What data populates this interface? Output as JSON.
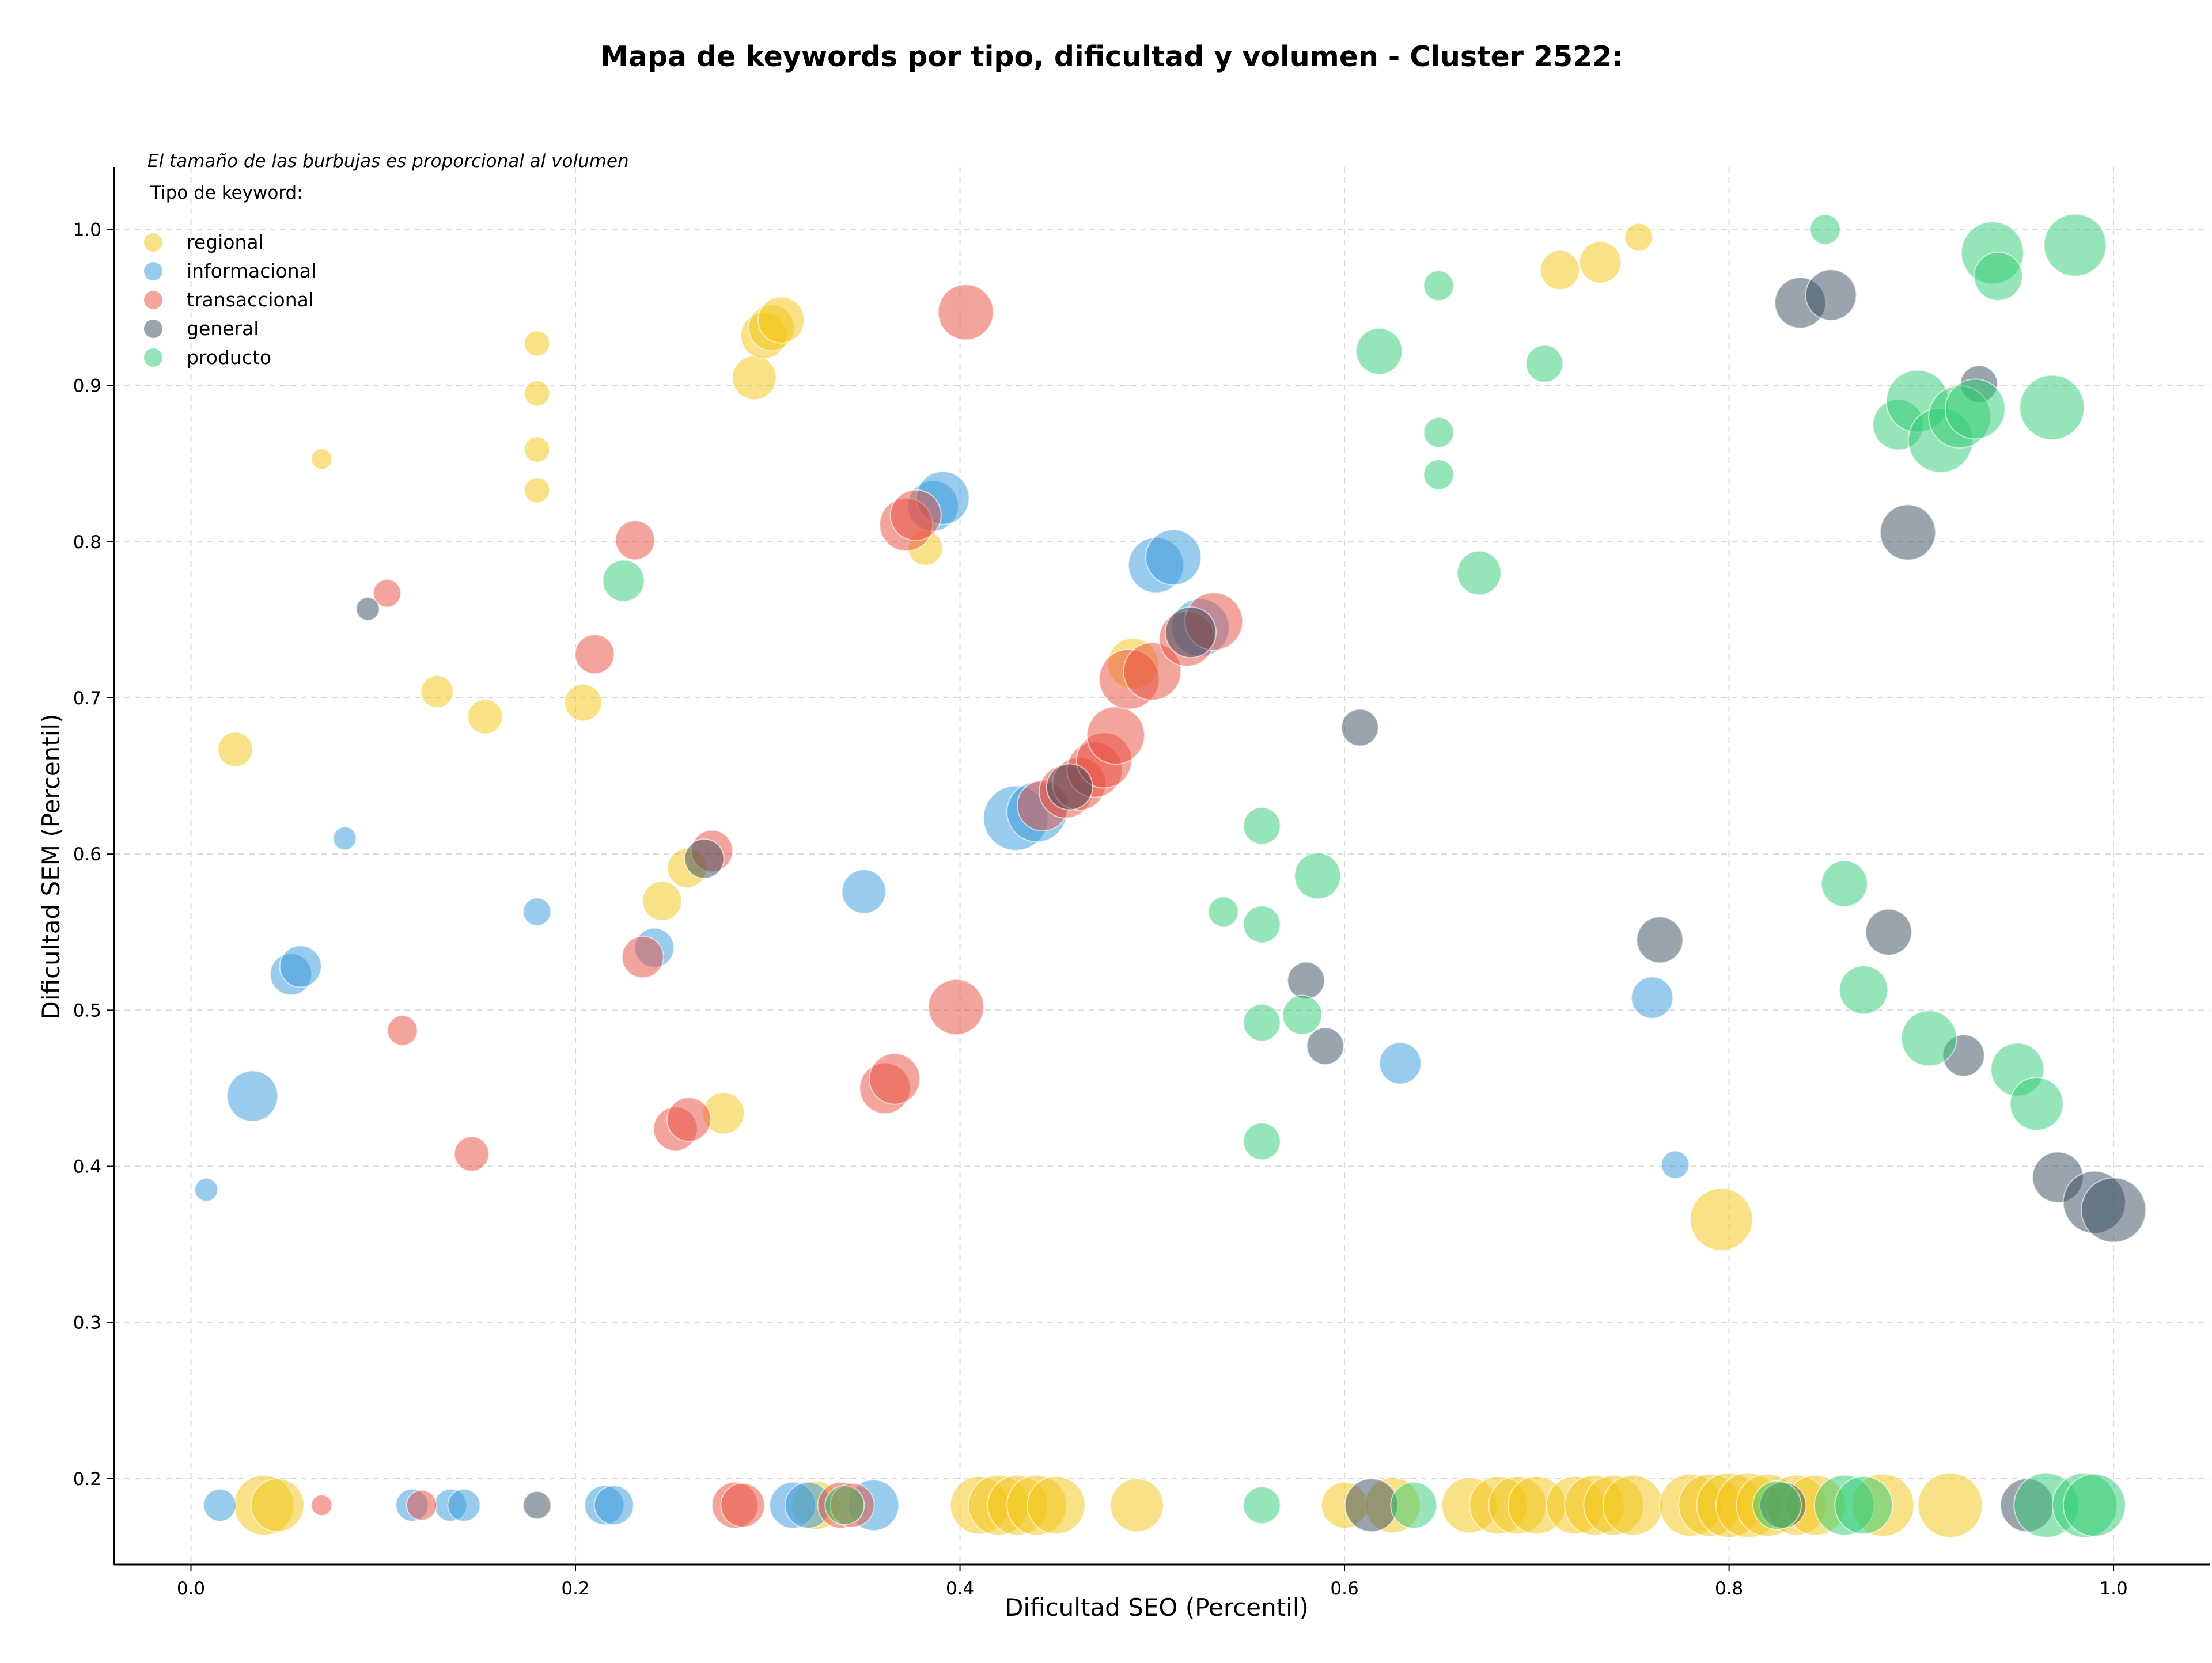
{
  "chart_data": {
    "type": "scatter",
    "title": "Mapa de keywords por tipo, dificultad y volumen - Cluster 2522:",
    "xlabel": "Dificultad SEO (Percentil)",
    "ylabel": "Dificultad SEM (Percentil)",
    "note": "El tamaño de las burbujas es proporcional al volumen",
    "legend_title": "Tipo de keyword:",
    "legend_position": "top-left",
    "grid": true,
    "xlim": [
      -0.04,
      1.05
    ],
    "ylim": [
      0.145,
      1.04
    ],
    "xticks": [
      "0.0",
      "0.2",
      "0.4",
      "0.6",
      "0.8",
      "1.0"
    ],
    "yticks": [
      "0.2",
      "0.3",
      "0.4",
      "0.5",
      "0.6",
      "0.7",
      "0.8",
      "0.9",
      "1.0"
    ],
    "series": [
      {
        "name": "regional",
        "color": "#f1c40f",
        "points": [
          [
            0.068,
            0.853,
            18
          ],
          [
            0.18,
            0.927,
            22
          ],
          [
            0.18,
            0.895,
            22
          ],
          [
            0.18,
            0.859,
            22
          ],
          [
            0.18,
            0.833,
            22
          ],
          [
            0.023,
            0.667,
            30
          ],
          [
            0.128,
            0.704,
            28
          ],
          [
            0.153,
            0.688,
            30
          ],
          [
            0.204,
            0.697,
            32
          ],
          [
            0.293,
            0.905,
            38
          ],
          [
            0.298,
            0.932,
            40
          ],
          [
            0.302,
            0.937,
            40
          ],
          [
            0.307,
            0.942,
            40
          ],
          [
            0.382,
            0.796,
            30
          ],
          [
            0.245,
            0.57,
            34
          ],
          [
            0.258,
            0.591,
            34
          ],
          [
            0.277,
            0.434,
            36
          ],
          [
            0.712,
            0.974,
            34
          ],
          [
            0.733,
            0.979,
            36
          ],
          [
            0.753,
            0.995,
            24
          ],
          [
            0.796,
            0.366,
            54
          ],
          [
            0.038,
            0.183,
            52
          ],
          [
            0.045,
            0.183,
            46
          ],
          [
            0.325,
            0.183,
            42
          ],
          [
            0.41,
            0.183,
            50
          ],
          [
            0.42,
            0.183,
            52
          ],
          [
            0.43,
            0.183,
            52
          ],
          [
            0.44,
            0.183,
            52
          ],
          [
            0.45,
            0.183,
            50
          ],
          [
            0.492,
            0.183,
            46
          ],
          [
            0.6,
            0.183,
            40
          ],
          [
            0.625,
            0.183,
            48
          ],
          [
            0.665,
            0.183,
            48
          ],
          [
            0.68,
            0.183,
            50
          ],
          [
            0.69,
            0.183,
            50
          ],
          [
            0.7,
            0.183,
            50
          ],
          [
            0.72,
            0.183,
            50
          ],
          [
            0.73,
            0.183,
            52
          ],
          [
            0.74,
            0.183,
            52
          ],
          [
            0.75,
            0.183,
            52
          ],
          [
            0.78,
            0.183,
            54
          ],
          [
            0.79,
            0.183,
            54
          ],
          [
            0.8,
            0.183,
            56
          ],
          [
            0.81,
            0.183,
            56
          ],
          [
            0.82,
            0.183,
            54
          ],
          [
            0.835,
            0.183,
            52
          ],
          [
            0.845,
            0.183,
            52
          ],
          [
            0.88,
            0.183,
            54
          ],
          [
            0.915,
            0.183,
            56
          ],
          [
            0.49,
            0.722,
            44
          ]
        ]
      },
      {
        "name": "informacional",
        "color": "#3498db",
        "points": [
          [
            0.008,
            0.385,
            20
          ],
          [
            0.08,
            0.61,
            20
          ],
          [
            0.18,
            0.563,
            24
          ],
          [
            0.032,
            0.445,
            44
          ],
          [
            0.052,
            0.523,
            36
          ],
          [
            0.057,
            0.528,
            36
          ],
          [
            0.241,
            0.54,
            34
          ],
          [
            0.35,
            0.576,
            38
          ],
          [
            0.386,
            0.823,
            44
          ],
          [
            0.391,
            0.828,
            46
          ],
          [
            0.429,
            0.623,
            56
          ],
          [
            0.44,
            0.627,
            52
          ],
          [
            0.502,
            0.785,
            48
          ],
          [
            0.511,
            0.79,
            48
          ],
          [
            0.525,
            0.745,
            50
          ],
          [
            0.629,
            0.466,
            36
          ],
          [
            0.76,
            0.508,
            36
          ],
          [
            0.772,
            0.401,
            24
          ],
          [
            0.015,
            0.183,
            28
          ],
          [
            0.115,
            0.183,
            28
          ],
          [
            0.135,
            0.183,
            28
          ],
          [
            0.142,
            0.183,
            28
          ],
          [
            0.215,
            0.183,
            34
          ],
          [
            0.22,
            0.183,
            34
          ],
          [
            0.313,
            0.183,
            40
          ],
          [
            0.321,
            0.183,
            40
          ],
          [
            0.355,
            0.183,
            44
          ]
        ]
      },
      {
        "name": "transaccional",
        "color": "#e74c3c",
        "points": [
          [
            0.102,
            0.767,
            24
          ],
          [
            0.11,
            0.487,
            26
          ],
          [
            0.146,
            0.408,
            30
          ],
          [
            0.21,
            0.728,
            34
          ],
          [
            0.231,
            0.801,
            34
          ],
          [
            0.235,
            0.534,
            36
          ],
          [
            0.252,
            0.424,
            38
          ],
          [
            0.259,
            0.43,
            38
          ],
          [
            0.271,
            0.602,
            36
          ],
          [
            0.361,
            0.45,
            44
          ],
          [
            0.366,
            0.456,
            44
          ],
          [
            0.372,
            0.811,
            46
          ],
          [
            0.377,
            0.817,
            44
          ],
          [
            0.403,
            0.947,
            48
          ],
          [
            0.398,
            0.502,
            48
          ],
          [
            0.443,
            0.631,
            44
          ],
          [
            0.455,
            0.64,
            46
          ],
          [
            0.462,
            0.645,
            46
          ],
          [
            0.47,
            0.654,
            48
          ],
          [
            0.475,
            0.66,
            48
          ],
          [
            0.481,
            0.676,
            50
          ],
          [
            0.488,
            0.712,
            52
          ],
          [
            0.5,
            0.717,
            50
          ],
          [
            0.518,
            0.738,
            48
          ],
          [
            0.532,
            0.749,
            50
          ],
          [
            0.068,
            0.183,
            18
          ],
          [
            0.12,
            0.183,
            26
          ],
          [
            0.283,
            0.183,
            40
          ],
          [
            0.287,
            0.183,
            38
          ],
          [
            0.338,
            0.183,
            40
          ],
          [
            0.344,
            0.183,
            38
          ]
        ]
      },
      {
        "name": "general",
        "color": "#34495e",
        "points": [
          [
            0.092,
            0.757,
            20
          ],
          [
            0.267,
            0.597,
            34
          ],
          [
            0.457,
            0.643,
            40
          ],
          [
            0.52,
            0.742,
            44
          ],
          [
            0.58,
            0.519,
            32
          ],
          [
            0.59,
            0.477,
            32
          ],
          [
            0.608,
            0.681,
            32
          ],
          [
            0.764,
            0.545,
            40
          ],
          [
            0.837,
            0.953,
            44
          ],
          [
            0.853,
            0.958,
            44
          ],
          [
            0.883,
            0.55,
            40
          ],
          [
            0.893,
            0.806,
            48
          ],
          [
            0.922,
            0.471,
            36
          ],
          [
            0.93,
            0.901,
            32
          ],
          [
            0.971,
            0.393,
            44
          ],
          [
            0.99,
            0.377,
            54
          ],
          [
            1.0,
            0.372,
            56
          ],
          [
            0.18,
            0.183,
            24
          ],
          [
            0.614,
            0.183,
            46
          ],
          [
            0.828,
            0.183,
            40
          ],
          [
            0.955,
            0.183,
            46
          ]
        ]
      },
      {
        "name": "producto",
        "color": "#2ecc71",
        "points": [
          [
            0.225,
            0.775,
            36
          ],
          [
            0.537,
            0.563,
            26
          ],
          [
            0.557,
            0.618,
            32
          ],
          [
            0.557,
            0.555,
            32
          ],
          [
            0.557,
            0.492,
            32
          ],
          [
            0.557,
            0.416,
            32
          ],
          [
            0.578,
            0.497,
            34
          ],
          [
            0.586,
            0.586,
            40
          ],
          [
            0.618,
            0.922,
            40
          ],
          [
            0.649,
            0.964,
            26
          ],
          [
            0.649,
            0.87,
            26
          ],
          [
            0.649,
            0.843,
            26
          ],
          [
            0.67,
            0.78,
            38
          ],
          [
            0.704,
            0.914,
            32
          ],
          [
            0.85,
            1.0,
            26
          ],
          [
            0.86,
            0.581,
            40
          ],
          [
            0.87,
            0.513,
            42
          ],
          [
            0.888,
            0.875,
            44
          ],
          [
            0.898,
            0.89,
            54
          ],
          [
            0.91,
            0.865,
            56
          ],
          [
            0.92,
            0.88,
            54
          ],
          [
            0.928,
            0.885,
            52
          ],
          [
            0.937,
            0.985,
            54
          ],
          [
            0.94,
            0.97,
            42
          ],
          [
            0.95,
            0.462,
            46
          ],
          [
            0.96,
            0.44,
            46
          ],
          [
            0.968,
            0.886,
            56
          ],
          [
            0.98,
            0.99,
            54
          ],
          [
            0.904,
            0.482,
            48
          ],
          [
            0.34,
            0.183,
            34
          ],
          [
            0.557,
            0.183,
            32
          ],
          [
            0.636,
            0.183,
            40
          ],
          [
            0.825,
            0.183,
            42
          ],
          [
            0.86,
            0.183,
            52
          ],
          [
            0.87,
            0.183,
            50
          ],
          [
            0.965,
            0.183,
            56
          ],
          [
            0.985,
            0.183,
            56
          ],
          [
            0.99,
            0.183,
            54
          ]
        ]
      }
    ]
  }
}
